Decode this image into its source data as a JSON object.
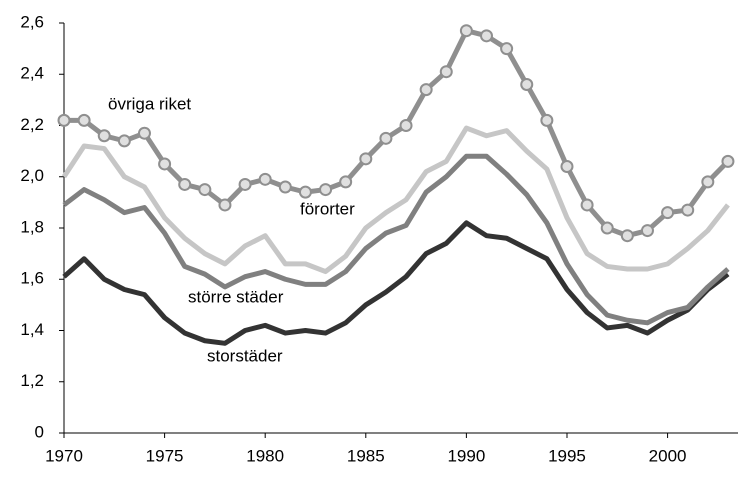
{
  "chart_data": {
    "type": "line",
    "x": [
      1970,
      1971,
      1972,
      1973,
      1974,
      1975,
      1976,
      1977,
      1978,
      1979,
      1980,
      1981,
      1982,
      1983,
      1984,
      1985,
      1986,
      1987,
      1988,
      1989,
      1990,
      1991,
      1992,
      1993,
      1994,
      1995,
      1996,
      1997,
      1998,
      1999,
      2000,
      2001,
      2002,
      2003
    ],
    "series": [
      {
        "name": "övriga riket",
        "color": "#8f8f8f",
        "marker": "circle",
        "values": [
          2.22,
          2.22,
          2.16,
          2.14,
          2.17,
          2.05,
          1.97,
          1.95,
          1.89,
          1.97,
          1.99,
          1.96,
          1.94,
          1.95,
          1.98,
          2.07,
          2.15,
          2.2,
          2.34,
          2.41,
          2.57,
          2.55,
          2.5,
          2.36,
          2.22,
          2.04,
          1.89,
          1.8,
          1.77,
          1.79,
          1.86,
          1.87,
          1.98,
          2.06
        ]
      },
      {
        "name": "förorter",
        "color": "#c6c6c6",
        "values": [
          2.0,
          2.12,
          2.11,
          2.0,
          1.96,
          1.84,
          1.76,
          1.7,
          1.66,
          1.73,
          1.77,
          1.66,
          1.66,
          1.63,
          1.69,
          1.8,
          1.86,
          1.91,
          2.02,
          2.06,
          2.19,
          2.16,
          2.18,
          2.1,
          2.03,
          1.84,
          1.7,
          1.65,
          1.64,
          1.64,
          1.66,
          1.72,
          1.79,
          1.89
        ]
      },
      {
        "name": "större städer",
        "color": "#808080",
        "values": [
          1.89,
          1.95,
          1.91,
          1.86,
          1.88,
          1.78,
          1.65,
          1.62,
          1.57,
          1.61,
          1.63,
          1.6,
          1.58,
          1.58,
          1.63,
          1.72,
          1.78,
          1.81,
          1.94,
          2.0,
          2.08,
          2.08,
          2.01,
          1.93,
          1.82,
          1.66,
          1.54,
          1.46,
          1.44,
          1.43,
          1.47,
          1.49,
          1.57,
          1.64
        ]
      },
      {
        "name": "storstäder",
        "color": "#333333",
        "values": [
          1.61,
          1.68,
          1.6,
          1.56,
          1.54,
          1.45,
          1.39,
          1.36,
          1.35,
          1.4,
          1.42,
          1.39,
          1.4,
          1.39,
          1.43,
          1.5,
          1.55,
          1.61,
          1.7,
          1.74,
          1.82,
          1.77,
          1.76,
          1.72,
          1.68,
          1.56,
          1.47,
          1.41,
          1.42,
          1.39,
          1.44,
          1.48,
          1.56,
          1.62
        ]
      }
    ],
    "xlim": [
      1970,
      2003.5
    ],
    "xticks": [
      1970,
      1975,
      1980,
      1985,
      1990,
      1995,
      2000
    ],
    "ylim": [
      0,
      2.6
    ],
    "axis_break": {
      "from": 0,
      "to": 1
    },
    "yticks": [
      0,
      {
        "value": 1.2,
        "label": "1,2"
      },
      {
        "value": 1.4,
        "label": "1,4"
      },
      {
        "value": 1.6,
        "label": "1,6"
      },
      {
        "value": 1.8,
        "label": "1,8"
      },
      {
        "value": 2.0,
        "label": "2,0"
      },
      {
        "value": 2.2,
        "label": "2,2"
      },
      {
        "value": 2.4,
        "label": "2,4"
      },
      {
        "value": 2.6,
        "label": "2,6"
      }
    ],
    "grid": false
  }
}
